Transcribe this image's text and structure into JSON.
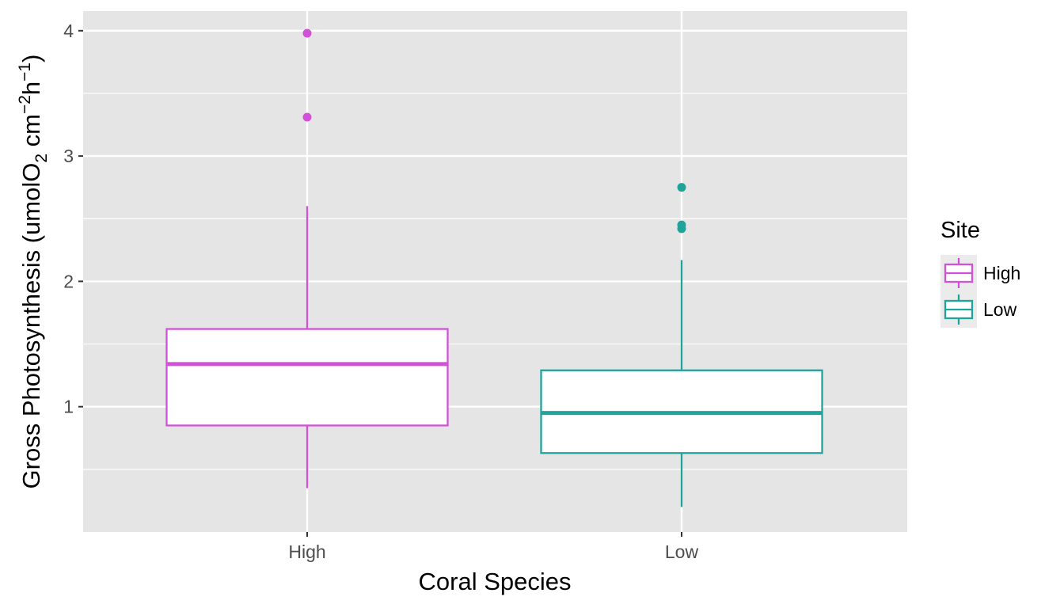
{
  "chart_data": {
    "type": "box",
    "xlabel": "Coral Species",
    "ylabel": {
      "prefix": "Gross Photosynthesis (umolO",
      "sub": "2",
      "mid1": " cm",
      "sup1": "−2",
      "mid2": "h",
      "sup2": "−1",
      "suffix": ")"
    },
    "ylim": [
      0,
      4.2
    ],
    "y_ticks": [
      {
        "value": 1,
        "label": "1"
      },
      {
        "value": 2,
        "label": "2"
      },
      {
        "value": 3,
        "label": "3"
      },
      {
        "value": 4,
        "label": "4"
      }
    ],
    "y_minor_ticks": [
      0.5,
      1.5,
      2.5,
      3.5
    ],
    "categories": [
      "High",
      "Low"
    ],
    "grid": true,
    "legend": {
      "title": "Site",
      "position": "right",
      "entries": [
        {
          "label": "High",
          "color": "#d152d6"
        },
        {
          "label": "Low",
          "color": "#1fa49b"
        }
      ]
    },
    "series": [
      {
        "category": "High",
        "color": "#d152d6",
        "whisker_low": 0.35,
        "q1": 0.85,
        "median": 1.34,
        "q3": 1.62,
        "whisker_high": 2.6,
        "outliers": [
          3.31,
          3.98
        ]
      },
      {
        "category": "Low",
        "color": "#1fa49b",
        "whisker_low": 0.2,
        "q1": 0.63,
        "median": 0.95,
        "q3": 1.29,
        "whisker_high": 2.17,
        "outliers": [
          2.42,
          2.45,
          2.75
        ]
      }
    ],
    "panel_background": "#e5e5e5",
    "grid_color": "#ffffff"
  }
}
